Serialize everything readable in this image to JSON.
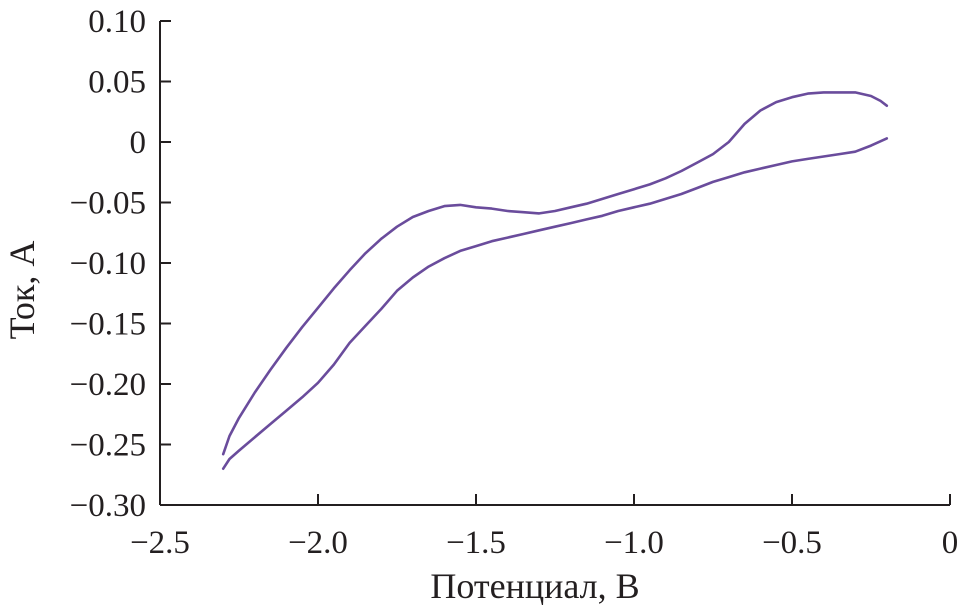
{
  "chart_data": {
    "type": "line",
    "title": "",
    "xlabel": "Потенциал, В",
    "ylabel": "Ток, А",
    "xlim": [
      -2.5,
      0
    ],
    "ylim": [
      -0.3,
      0.1
    ],
    "xticks": [
      -2.5,
      -2.0,
      -1.5,
      -1.0,
      -0.5,
      0
    ],
    "xtick_labels": [
      "−2.5",
      "−2.0",
      "−1.5",
      "−1.0",
      "−0.5",
      "0"
    ],
    "yticks": [
      0.1,
      0.05,
      0,
      -0.05,
      -0.1,
      -0.15,
      -0.2,
      -0.25,
      -0.3
    ],
    "ytick_labels": [
      "0.10",
      "0.05",
      "0",
      "−0.05",
      "−0.10",
      "−0.15",
      "−0.20",
      "−0.25",
      "−0.30"
    ],
    "grid": false,
    "legend": "none",
    "color": "#6a4c9c",
    "series": [
      {
        "x": [
          -0.2,
          -0.22,
          -0.25,
          -0.3,
          -0.35,
          -0.4,
          -0.45,
          -0.5,
          -0.55,
          -0.6,
          -0.65,
          -0.7,
          -0.75,
          -0.8,
          -0.85,
          -0.9,
          -0.95,
          -1.0,
          -1.05,
          -1.1,
          -1.15,
          -1.2,
          -1.25,
          -1.3,
          -1.35,
          -1.4,
          -1.45,
          -1.5,
          -1.55,
          -1.6,
          -1.65,
          -1.7,
          -1.75,
          -1.8,
          -1.85,
          -1.9,
          -1.95,
          -2.0,
          -2.05,
          -2.1,
          -2.15,
          -2.2,
          -2.25,
          -2.28,
          -2.3
        ],
        "y": [
          0.03,
          0.034,
          0.038,
          0.041,
          0.041,
          0.041,
          0.04,
          0.037,
          0.033,
          0.026,
          0.015,
          0.0,
          -0.01,
          -0.017,
          -0.024,
          -0.03,
          -0.035,
          -0.039,
          -0.043,
          -0.047,
          -0.051,
          -0.054,
          -0.057,
          -0.059,
          -0.058,
          -0.057,
          -0.055,
          -0.054,
          -0.052,
          -0.053,
          -0.057,
          -0.062,
          -0.07,
          -0.08,
          -0.092,
          -0.106,
          -0.121,
          -0.137,
          -0.153,
          -0.17,
          -0.188,
          -0.207,
          -0.228,
          -0.243,
          -0.258
        ]
      },
      {
        "x": [
          -2.3,
          -2.28,
          -2.25,
          -2.2,
          -2.15,
          -2.1,
          -2.05,
          -2.0,
          -1.95,
          -1.9,
          -1.85,
          -1.8,
          -1.75,
          -1.7,
          -1.65,
          -1.6,
          -1.55,
          -1.5,
          -1.45,
          -1.4,
          -1.35,
          -1.3,
          -1.25,
          -1.2,
          -1.15,
          -1.1,
          -1.05,
          -1.0,
          -0.95,
          -0.9,
          -0.85,
          -0.8,
          -0.75,
          -0.7,
          -0.65,
          -0.6,
          -0.55,
          -0.5,
          -0.45,
          -0.4,
          -0.35,
          -0.3,
          -0.25,
          -0.2
        ],
        "y": [
          -0.27,
          -0.262,
          -0.255,
          -0.244,
          -0.233,
          -0.222,
          -0.211,
          -0.199,
          -0.184,
          -0.166,
          -0.152,
          -0.138,
          -0.123,
          -0.112,
          -0.103,
          -0.096,
          -0.09,
          -0.086,
          -0.082,
          -0.079,
          -0.076,
          -0.073,
          -0.07,
          -0.067,
          -0.064,
          -0.061,
          -0.057,
          -0.054,
          -0.051,
          -0.047,
          -0.043,
          -0.038,
          -0.033,
          -0.029,
          -0.025,
          -0.022,
          -0.019,
          -0.016,
          -0.014,
          -0.012,
          -0.01,
          -0.008,
          -0.003,
          0.003
        ]
      }
    ]
  }
}
